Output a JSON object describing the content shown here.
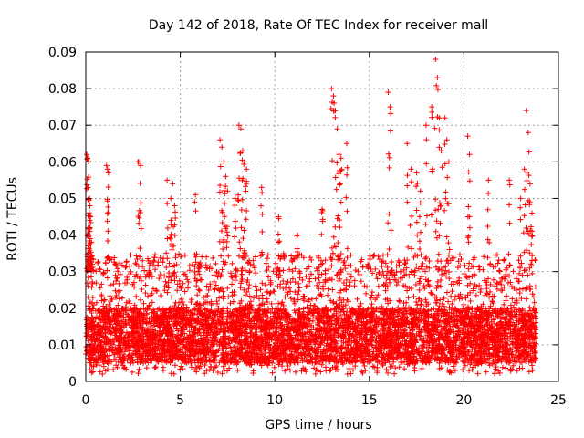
{
  "chart_data": {
    "type": "scatter",
    "title": "Day 142 of 2018, Rate Of TEC Index for receiver mall",
    "xlabel": "GPS time / hours",
    "ylabel": "ROTI / TECUs",
    "xlim": [
      0,
      25
    ],
    "ylim": [
      0,
      0.09
    ],
    "xticks": [
      0,
      5,
      10,
      15,
      20,
      25
    ],
    "xtick_labels": [
      "0",
      "5",
      "10",
      "15",
      "20",
      "25"
    ],
    "yticks": [
      0,
      0.01,
      0.02,
      0.03,
      0.04,
      0.05,
      0.06,
      0.07,
      0.08,
      0.09
    ],
    "ytick_labels": [
      "0",
      "0.01",
      "0.02",
      "0.03",
      "0.04",
      "0.05",
      "0.06",
      "0.07",
      "0.08",
      "0.09"
    ],
    "grid": true,
    "marker": "+",
    "color": "#ff0000",
    "series": [
      {
        "name": "ROTI",
        "x": [
          0.05,
          0.1,
          0.15,
          0.2,
          0.25,
          0.1,
          0.12,
          0.18,
          0.2,
          0.22,
          0.3,
          0.35,
          1.1,
          1.15,
          1.2,
          2.8,
          2.9,
          4.3,
          4.5,
          4.6,
          4.7,
          5.8,
          7.1,
          7.2,
          7.3,
          7.4,
          7.5,
          7.9,
          8.1,
          8.2,
          8.3,
          8.4,
          8.5,
          9.3,
          10.2,
          11.2,
          12.5,
          13.0,
          13.1,
          13.2,
          13.3,
          13.4,
          13.5,
          13.8,
          16.0,
          16.1,
          17.0,
          17.2,
          17.5,
          17.7,
          18.0,
          18.3,
          18.5,
          18.6,
          18.7,
          18.8,
          19.0,
          19.1,
          19.2,
          20.2,
          20.3,
          21.3,
          22.4,
          23.0,
          23.2,
          23.3,
          23.4,
          23.5,
          23.6
        ],
        "y": [
          0.062,
          0.061,
          0.06,
          0.05,
          0.045,
          0.04,
          0.035,
          0.033,
          0.042,
          0.048,
          0.038,
          0.032,
          0.059,
          0.058,
          0.057,
          0.06,
          0.059,
          0.055,
          0.05,
          0.054,
          0.048,
          0.051,
          0.066,
          0.064,
          0.06,
          0.056,
          0.052,
          0.05,
          0.07,
          0.069,
          0.063,
          0.06,
          0.058,
          0.053,
          0.045,
          0.04,
          0.047,
          0.08,
          0.078,
          0.074,
          0.069,
          0.062,
          0.061,
          0.065,
          0.079,
          0.075,
          0.065,
          0.058,
          0.057,
          0.052,
          0.07,
          0.075,
          0.088,
          0.083,
          0.072,
          0.063,
          0.072,
          0.066,
          0.06,
          0.067,
          0.062,
          0.055,
          0.055,
          0.05,
          0.058,
          0.074,
          0.068,
          0.054,
          0.046
        ],
        "background_band": {
          "x_range": [
            0,
            23.8
          ],
          "y_range": [
            0.002,
            0.035
          ],
          "typical_range": [
            0.005,
            0.02
          ]
        }
      }
    ]
  }
}
